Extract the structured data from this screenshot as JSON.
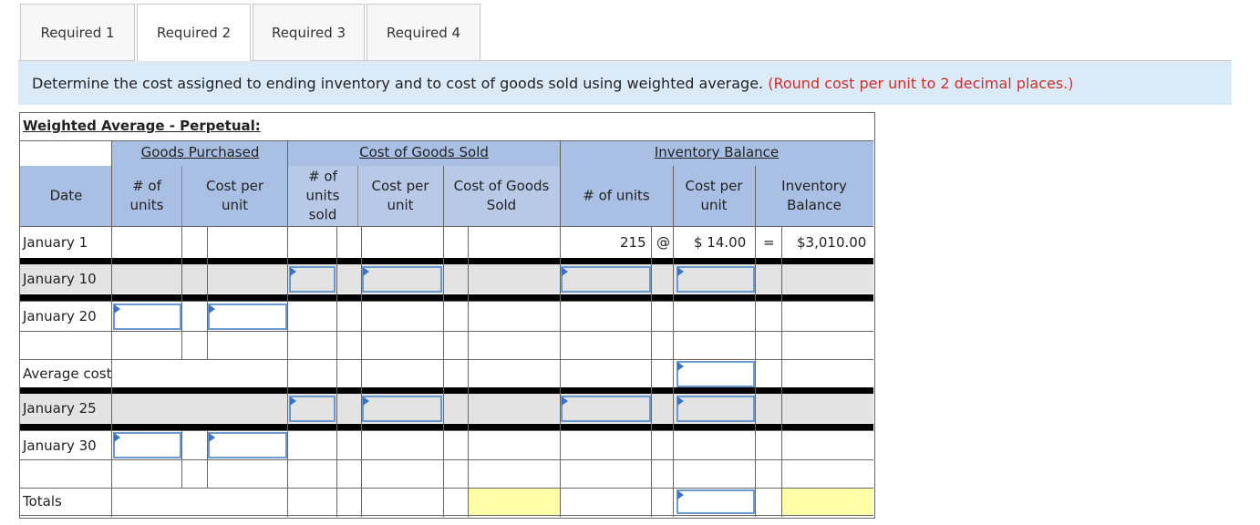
{
  "tabs": [
    "Required 1",
    "Required 2",
    "Required 3",
    "Required 4"
  ],
  "active_tab": "Required 2",
  "instruction": {
    "text": "Determine the cost assigned to ending inventory and to cost of goods sold using weighted average.",
    "note": "(Round cost per unit to 2 decimal places.)"
  },
  "sheet": {
    "title": "Weighted Average - Perpetual:",
    "groups": {
      "purchased": "Goods Purchased",
      "cogs": "Cost of Goods Sold",
      "inventory": "Inventory Balance"
    },
    "columns": {
      "date": "Date",
      "p_units": "# of units",
      "p_cost": "Cost per unit",
      "s_units": "# of units sold",
      "s_cost": "Cost per unit",
      "s_cogs": "Cost of Goods Sold",
      "i_units": "# of units",
      "i_cost": "Cost per unit",
      "i_balance": "Inventory Balance"
    },
    "rows": {
      "jan1": "January 1",
      "jan10": "January 10",
      "jan20": "January 20",
      "avg": "Average cost",
      "jan25": "January 25",
      "jan30": "January 30",
      "totals": "Totals"
    },
    "jan1_values": {
      "units": "215",
      "at": "@",
      "cost": "$ 14.00",
      "eq": "=",
      "balance": "$3,010.00"
    }
  }
}
